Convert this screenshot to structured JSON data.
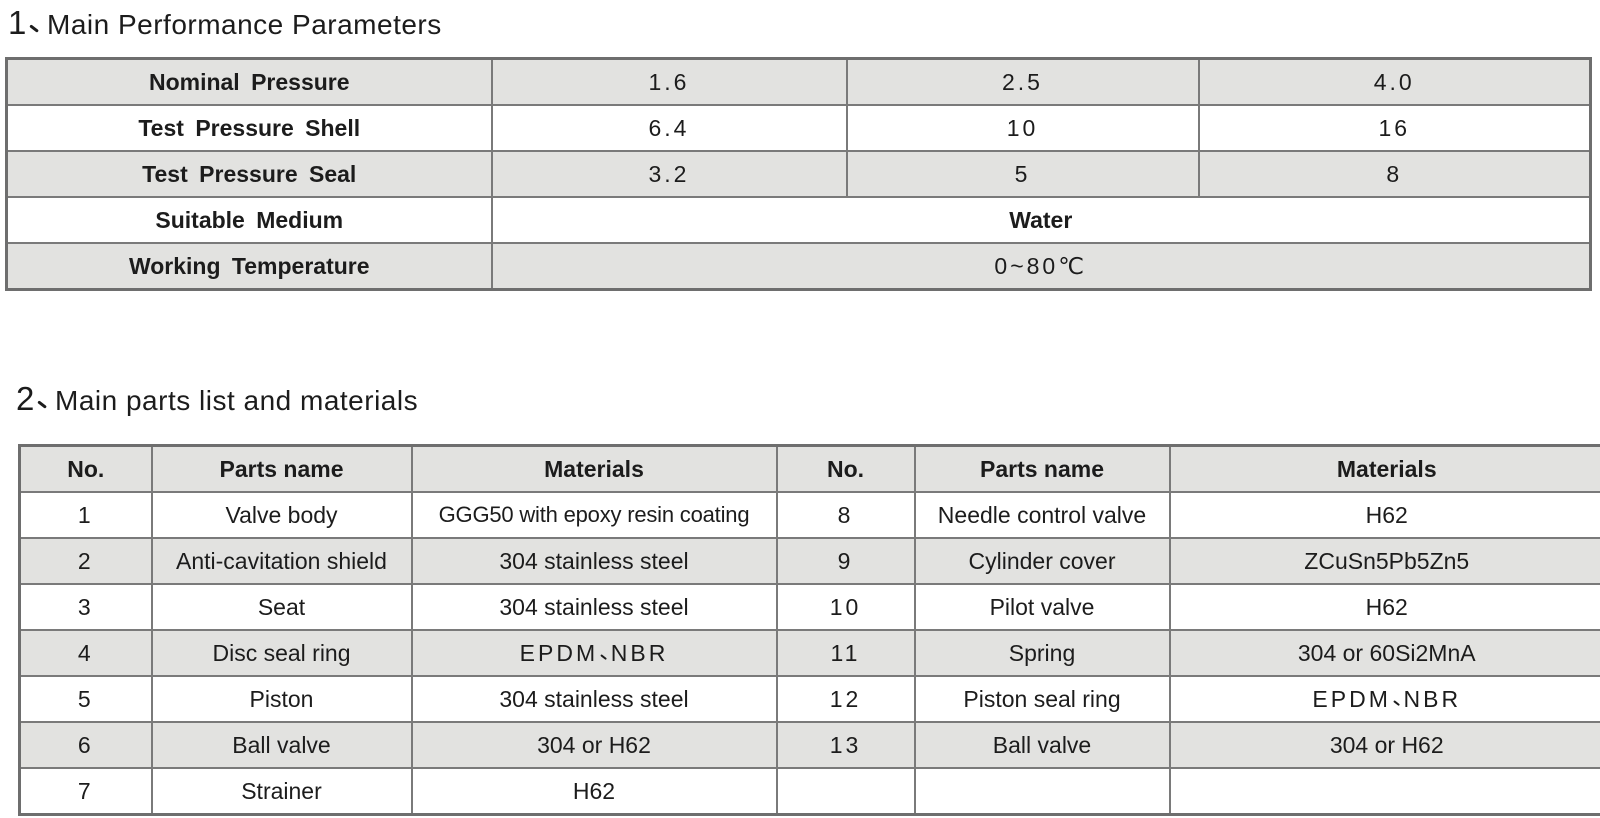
{
  "colors": {
    "shade": "#e2e2e0",
    "border": "#7a7a7a",
    "outer": "#6e6e6e",
    "text": "#1c1c1c",
    "bg": "#ffffff"
  },
  "section1": {
    "number_label": "1、",
    "title": "Main Performance Parameters",
    "table": {
      "rows": [
        {
          "label": "Nominal Pressure",
          "values": [
            "1.6",
            "2.5",
            "4.0"
          ]
        },
        {
          "label": "Test Pressure Shell",
          "values": [
            "6.4",
            "10",
            "16"
          ]
        },
        {
          "label": "Test Pressure Seal",
          "values": [
            "3.2",
            "5",
            "8"
          ]
        },
        {
          "label": "Suitable Medium",
          "span_value": "Water"
        },
        {
          "label": "Working Temperature",
          "span_value": "0~80℃"
        }
      ]
    }
  },
  "section2": {
    "number_label": "2、",
    "title": "Main parts list and materials",
    "table": {
      "headers": [
        "No.",
        "Parts name",
        "Materials",
        "No.",
        "Parts name",
        "Materials"
      ],
      "rows": [
        [
          "1",
          "Valve body",
          "GGG50 with epoxy resin coating",
          "8",
          "Needle control valve",
          "H62"
        ],
        [
          "2",
          "Anti-cavitation shield",
          "304 stainless steel",
          "9",
          "Cylinder cover",
          "ZCuSn5Pb5Zn5"
        ],
        [
          "3",
          "Seat",
          "304 stainless steel",
          "10",
          "Pilot valve",
          "H62"
        ],
        [
          "4",
          "Disc seal ring",
          "EPDM、NBR",
          "11",
          "Spring",
          "304 or 60Si2MnA"
        ],
        [
          "5",
          "Piston",
          "304 stainless steel",
          "12",
          "Piston seal ring",
          "EPDM、NBR"
        ],
        [
          "6",
          "Ball valve",
          "304 or H62",
          "13",
          "Ball valve",
          "304 or H62"
        ],
        [
          "7",
          "Strainer",
          "H62",
          "",
          "",
          ""
        ]
      ]
    }
  }
}
